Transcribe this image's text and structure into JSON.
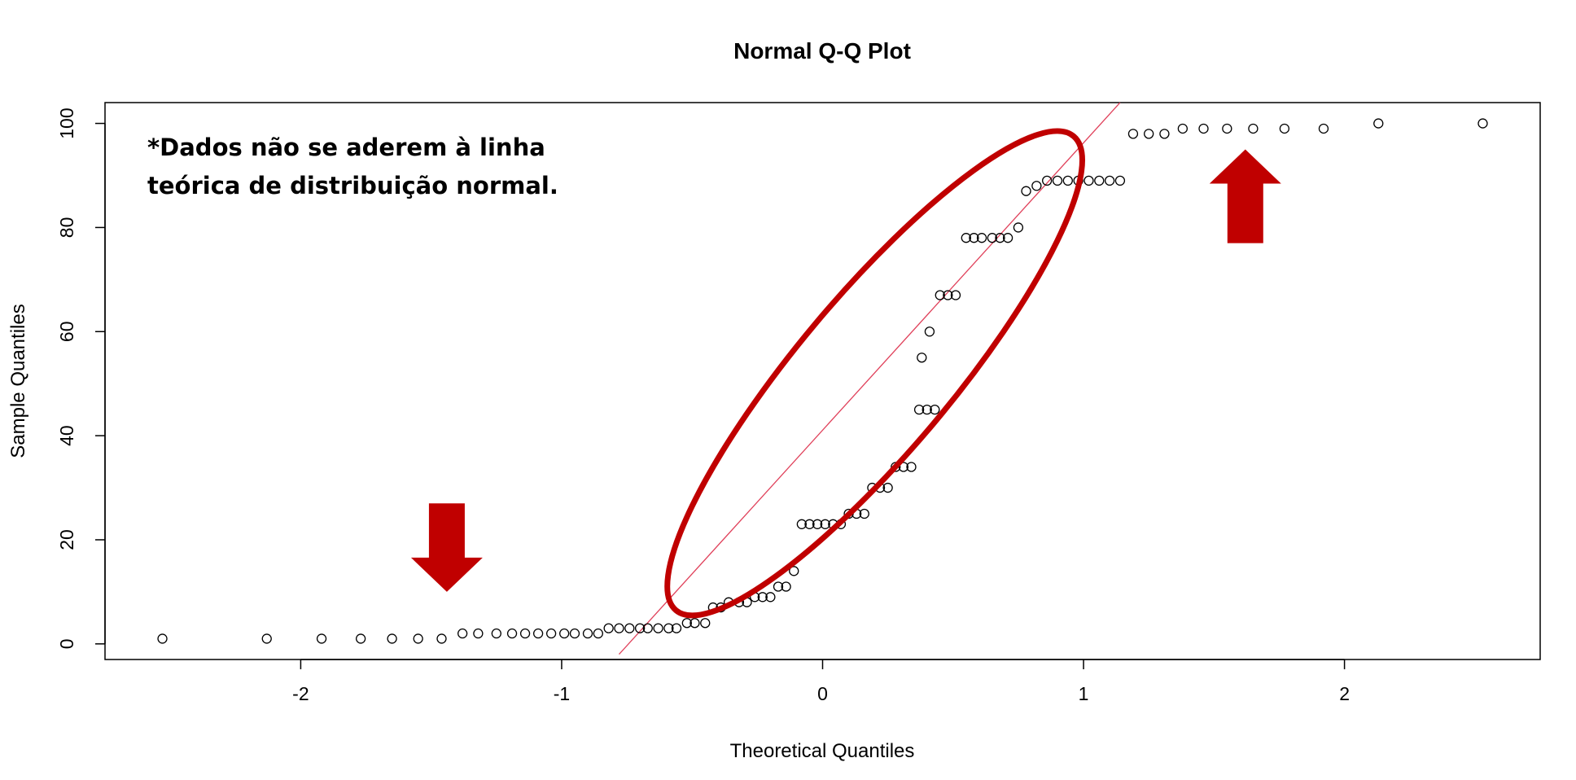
{
  "chart_data": {
    "type": "scatter",
    "title": "Normal Q-Q Plot",
    "xlabel": "Theoretical Quantiles",
    "ylabel": "Sample Quantiles",
    "xlim": [
      -2.75,
      2.75
    ],
    "ylim": [
      -3,
      104
    ],
    "x_ticks": [
      -2,
      -1,
      0,
      1,
      2
    ],
    "y_ticks": [
      0,
      20,
      40,
      60,
      80,
      100
    ],
    "grid": false,
    "series": [
      {
        "points": [
          [
            -2.53,
            1
          ],
          [
            -2.13,
            1
          ],
          [
            -1.92,
            1
          ],
          [
            -1.77,
            1
          ],
          [
            -1.65,
            1
          ],
          [
            -1.55,
            1
          ],
          [
            -1.46,
            1
          ],
          [
            -1.38,
            2
          ],
          [
            -1.32,
            2
          ],
          [
            -1.25,
            2
          ],
          [
            -1.19,
            2
          ],
          [
            -1.14,
            2
          ],
          [
            -1.09,
            2
          ],
          [
            -1.04,
            2
          ],
          [
            -0.99,
            2
          ],
          [
            -0.95,
            2
          ],
          [
            -0.9,
            2
          ],
          [
            -0.86,
            2
          ],
          [
            -0.82,
            3
          ],
          [
            -0.78,
            3
          ],
          [
            -0.74,
            3
          ],
          [
            -0.7,
            3
          ],
          [
            -0.67,
            3
          ],
          [
            -0.63,
            3
          ],
          [
            -0.59,
            3
          ],
          [
            -0.56,
            3
          ],
          [
            -0.52,
            4
          ],
          [
            -0.49,
            4
          ],
          [
            -0.45,
            4
          ],
          [
            -0.42,
            7
          ],
          [
            -0.39,
            7
          ],
          [
            -0.36,
            8
          ],
          [
            -0.32,
            8
          ],
          [
            -0.29,
            8
          ],
          [
            -0.26,
            9
          ],
          [
            -0.23,
            9
          ],
          [
            -0.2,
            9
          ],
          [
            -0.17,
            11
          ],
          [
            -0.14,
            11
          ],
          [
            -0.11,
            14
          ],
          [
            -0.08,
            23
          ],
          [
            -0.05,
            23
          ],
          [
            -0.02,
            23
          ],
          [
            0.01,
            23
          ],
          [
            0.04,
            23
          ],
          [
            0.07,
            23
          ],
          [
            0.1,
            25
          ],
          [
            0.13,
            25
          ],
          [
            0.16,
            25
          ],
          [
            0.19,
            30
          ],
          [
            0.22,
            30
          ],
          [
            0.25,
            30
          ],
          [
            0.28,
            34
          ],
          [
            0.31,
            34
          ],
          [
            0.34,
            34
          ],
          [
            0.37,
            45
          ],
          [
            0.4,
            45
          ],
          [
            0.43,
            45
          ],
          [
            0.38,
            55
          ],
          [
            0.41,
            60
          ],
          [
            0.45,
            67
          ],
          [
            0.48,
            67
          ],
          [
            0.51,
            67
          ],
          [
            0.55,
            78
          ],
          [
            0.58,
            78
          ],
          [
            0.61,
            78
          ],
          [
            0.65,
            78
          ],
          [
            0.68,
            78
          ],
          [
            0.71,
            78
          ],
          [
            0.75,
            80
          ],
          [
            0.78,
            87
          ],
          [
            0.82,
            88
          ],
          [
            0.86,
            89
          ],
          [
            0.9,
            89
          ],
          [
            0.94,
            89
          ],
          [
            0.98,
            89
          ],
          [
            1.02,
            89
          ],
          [
            1.06,
            89
          ],
          [
            1.1,
            89
          ],
          [
            1.14,
            89
          ],
          [
            1.19,
            98
          ],
          [
            1.25,
            98
          ],
          [
            1.31,
            98
          ],
          [
            1.38,
            99
          ],
          [
            1.46,
            99
          ],
          [
            1.55,
            99
          ],
          [
            1.65,
            99
          ],
          [
            1.77,
            99
          ],
          [
            1.92,
            99
          ],
          [
            2.13,
            100
          ],
          [
            2.53,
            100
          ]
        ]
      }
    ],
    "qq_line": {
      "from": [
        -0.78,
        -2
      ],
      "to": [
        1.14,
        104
      ],
      "color": "#e0405a"
    },
    "annotation": {
      "lines": [
        "*Dados não se aderem à linha",
        "teórica de distribuição normal."
      ],
      "color": "#000000"
    },
    "highlights": {
      "color": "#c00000",
      "ellipse": {
        "center": [
          0.2,
          52
        ],
        "rx_units": 1.3,
        "ry_units": 44
      },
      "down_arrow": {
        "x": -1.44,
        "from_y": 27,
        "to_y": 10
      },
      "up_arrow": {
        "x": 1.62,
        "from_y": 77,
        "to_y": 95
      }
    }
  }
}
